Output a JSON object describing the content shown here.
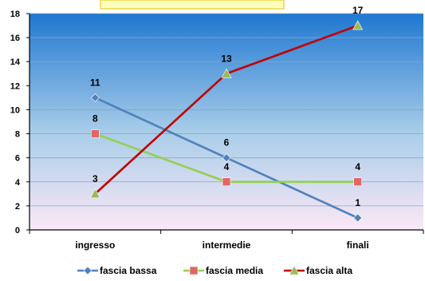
{
  "chart_data": {
    "type": "line",
    "categories": [
      "ingresso",
      "intermedie",
      "finali"
    ],
    "ylim": [
      0,
      18
    ],
    "yticks": [
      0,
      2,
      4,
      6,
      8,
      10,
      12,
      14,
      16,
      18
    ],
    "grid": true,
    "legend_position": "bottom",
    "series": [
      {
        "name": "fascia bassa",
        "values": [
          11,
          6,
          1
        ],
        "color": "#4f81bd",
        "marker": "diamond"
      },
      {
        "name": "fascia media",
        "values": [
          8,
          4,
          4
        ],
        "color": "#92d050",
        "marker_color": "#e06666",
        "marker": "square"
      },
      {
        "name": "fascia alta",
        "values": [
          3,
          13,
          17
        ],
        "color": "#c00000",
        "marker_color": "#9bbb59",
        "marker": "triangle"
      }
    ]
  },
  "colors": {
    "plot_top": "#1f78d1",
    "plot_bottom": "#fbe8f6",
    "title_box_fill": "#ffffc0",
    "title_box_border": "#e6c000"
  }
}
